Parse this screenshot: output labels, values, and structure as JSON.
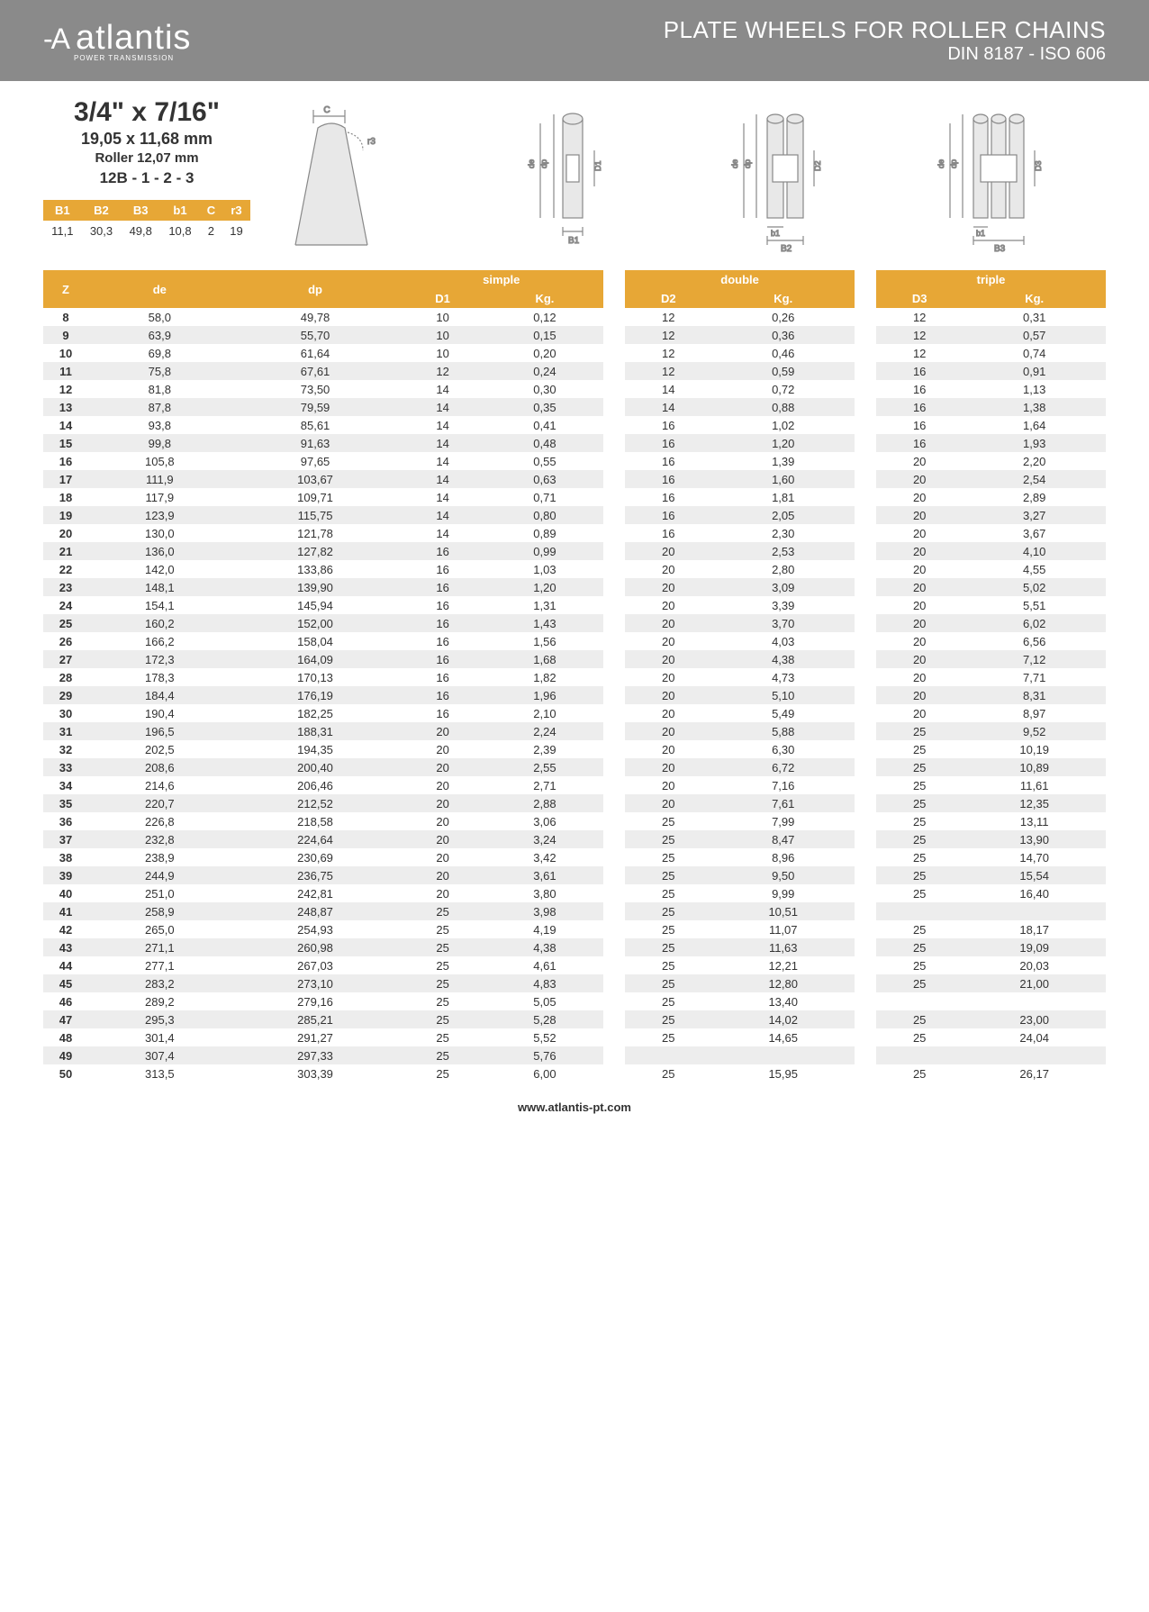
{
  "brand": {
    "text": "atlantis",
    "sub": "POWER TRANSMISSION"
  },
  "header": {
    "line1": "PLATE WHEELS FOR ROLLER CHAINS",
    "line2": "DIN 8187 - ISO 606"
  },
  "spec": {
    "title": "3/4\" x 7/16\"",
    "mm": "19,05 x 11,68 mm",
    "roller": "Roller 12,07 mm",
    "code": "12B - 1 - 2 - 3"
  },
  "mini_headers": [
    "B1",
    "B2",
    "B3",
    "b1",
    "C",
    "r3"
  ],
  "mini_values": [
    "11,1",
    "30,3",
    "49,8",
    "10,8",
    "2",
    "19"
  ],
  "table": {
    "groups": [
      "simple",
      "double",
      "triple"
    ],
    "sub": {
      "z": "Z",
      "de": "de",
      "dp": "dp",
      "d": "D",
      "kg": "Kg."
    },
    "d_labels": [
      "D1",
      "D2",
      "D3"
    ],
    "rows": [
      {
        "z": "8",
        "de": "58,0",
        "dp": "49,78",
        "d1": "10",
        "k1": "0,12",
        "d2": "12",
        "k2": "0,26",
        "d3": "12",
        "k3": "0,31"
      },
      {
        "z": "9",
        "de": "63,9",
        "dp": "55,70",
        "d1": "10",
        "k1": "0,15",
        "d2": "12",
        "k2": "0,36",
        "d3": "12",
        "k3": "0,57"
      },
      {
        "z": "10",
        "de": "69,8",
        "dp": "61,64",
        "d1": "10",
        "k1": "0,20",
        "d2": "12",
        "k2": "0,46",
        "d3": "12",
        "k3": "0,74"
      },
      {
        "z": "11",
        "de": "75,8",
        "dp": "67,61",
        "d1": "12",
        "k1": "0,24",
        "d2": "12",
        "k2": "0,59",
        "d3": "16",
        "k3": "0,91"
      },
      {
        "z": "12",
        "de": "81,8",
        "dp": "73,50",
        "d1": "14",
        "k1": "0,30",
        "d2": "14",
        "k2": "0,72",
        "d3": "16",
        "k3": "1,13"
      },
      {
        "z": "13",
        "de": "87,8",
        "dp": "79,59",
        "d1": "14",
        "k1": "0,35",
        "d2": "14",
        "k2": "0,88",
        "d3": "16",
        "k3": "1,38"
      },
      {
        "z": "14",
        "de": "93,8",
        "dp": "85,61",
        "d1": "14",
        "k1": "0,41",
        "d2": "16",
        "k2": "1,02",
        "d3": "16",
        "k3": "1,64"
      },
      {
        "z": "15",
        "de": "99,8",
        "dp": "91,63",
        "d1": "14",
        "k1": "0,48",
        "d2": "16",
        "k2": "1,20",
        "d3": "16",
        "k3": "1,93"
      },
      {
        "z": "16",
        "de": "105,8",
        "dp": "97,65",
        "d1": "14",
        "k1": "0,55",
        "d2": "16",
        "k2": "1,39",
        "d3": "20",
        "k3": "2,20"
      },
      {
        "z": "17",
        "de": "111,9",
        "dp": "103,67",
        "d1": "14",
        "k1": "0,63",
        "d2": "16",
        "k2": "1,60",
        "d3": "20",
        "k3": "2,54"
      },
      {
        "z": "18",
        "de": "117,9",
        "dp": "109,71",
        "d1": "14",
        "k1": "0,71",
        "d2": "16",
        "k2": "1,81",
        "d3": "20",
        "k3": "2,89"
      },
      {
        "z": "19",
        "de": "123,9",
        "dp": "115,75",
        "d1": "14",
        "k1": "0,80",
        "d2": "16",
        "k2": "2,05",
        "d3": "20",
        "k3": "3,27"
      },
      {
        "z": "20",
        "de": "130,0",
        "dp": "121,78",
        "d1": "14",
        "k1": "0,89",
        "d2": "16",
        "k2": "2,30",
        "d3": "20",
        "k3": "3,67"
      },
      {
        "z": "21",
        "de": "136,0",
        "dp": "127,82",
        "d1": "16",
        "k1": "0,99",
        "d2": "20",
        "k2": "2,53",
        "d3": "20",
        "k3": "4,10"
      },
      {
        "z": "22",
        "de": "142,0",
        "dp": "133,86",
        "d1": "16",
        "k1": "1,03",
        "d2": "20",
        "k2": "2,80",
        "d3": "20",
        "k3": "4,55"
      },
      {
        "z": "23",
        "de": "148,1",
        "dp": "139,90",
        "d1": "16",
        "k1": "1,20",
        "d2": "20",
        "k2": "3,09",
        "d3": "20",
        "k3": "5,02"
      },
      {
        "z": "24",
        "de": "154,1",
        "dp": "145,94",
        "d1": "16",
        "k1": "1,31",
        "d2": "20",
        "k2": "3,39",
        "d3": "20",
        "k3": "5,51"
      },
      {
        "z": "25",
        "de": "160,2",
        "dp": "152,00",
        "d1": "16",
        "k1": "1,43",
        "d2": "20",
        "k2": "3,70",
        "d3": "20",
        "k3": "6,02"
      },
      {
        "z": "26",
        "de": "166,2",
        "dp": "158,04",
        "d1": "16",
        "k1": "1,56",
        "d2": "20",
        "k2": "4,03",
        "d3": "20",
        "k3": "6,56"
      },
      {
        "z": "27",
        "de": "172,3",
        "dp": "164,09",
        "d1": "16",
        "k1": "1,68",
        "d2": "20",
        "k2": "4,38",
        "d3": "20",
        "k3": "7,12"
      },
      {
        "z": "28",
        "de": "178,3",
        "dp": "170,13",
        "d1": "16",
        "k1": "1,82",
        "d2": "20",
        "k2": "4,73",
        "d3": "20",
        "k3": "7,71"
      },
      {
        "z": "29",
        "de": "184,4",
        "dp": "176,19",
        "d1": "16",
        "k1": "1,96",
        "d2": "20",
        "k2": "5,10",
        "d3": "20",
        "k3": "8,31"
      },
      {
        "z": "30",
        "de": "190,4",
        "dp": "182,25",
        "d1": "16",
        "k1": "2,10",
        "d2": "20",
        "k2": "5,49",
        "d3": "20",
        "k3": "8,97"
      },
      {
        "z": "31",
        "de": "196,5",
        "dp": "188,31",
        "d1": "20",
        "k1": "2,24",
        "d2": "20",
        "k2": "5,88",
        "d3": "25",
        "k3": "9,52"
      },
      {
        "z": "32",
        "de": "202,5",
        "dp": "194,35",
        "d1": "20",
        "k1": "2,39",
        "d2": "20",
        "k2": "6,30",
        "d3": "25",
        "k3": "10,19"
      },
      {
        "z": "33",
        "de": "208,6",
        "dp": "200,40",
        "d1": "20",
        "k1": "2,55",
        "d2": "20",
        "k2": "6,72",
        "d3": "25",
        "k3": "10,89"
      },
      {
        "z": "34",
        "de": "214,6",
        "dp": "206,46",
        "d1": "20",
        "k1": "2,71",
        "d2": "20",
        "k2": "7,16",
        "d3": "25",
        "k3": "11,61"
      },
      {
        "z": "35",
        "de": "220,7",
        "dp": "212,52",
        "d1": "20",
        "k1": "2,88",
        "d2": "20",
        "k2": "7,61",
        "d3": "25",
        "k3": "12,35"
      },
      {
        "z": "36",
        "de": "226,8",
        "dp": "218,58",
        "d1": "20",
        "k1": "3,06",
        "d2": "25",
        "k2": "7,99",
        "d3": "25",
        "k3": "13,11"
      },
      {
        "z": "37",
        "de": "232,8",
        "dp": "224,64",
        "d1": "20",
        "k1": "3,24",
        "d2": "25",
        "k2": "8,47",
        "d3": "25",
        "k3": "13,90"
      },
      {
        "z": "38",
        "de": "238,9",
        "dp": "230,69",
        "d1": "20",
        "k1": "3,42",
        "d2": "25",
        "k2": "8,96",
        "d3": "25",
        "k3": "14,70"
      },
      {
        "z": "39",
        "de": "244,9",
        "dp": "236,75",
        "d1": "20",
        "k1": "3,61",
        "d2": "25",
        "k2": "9,50",
        "d3": "25",
        "k3": "15,54"
      },
      {
        "z": "40",
        "de": "251,0",
        "dp": "242,81",
        "d1": "20",
        "k1": "3,80",
        "d2": "25",
        "k2": "9,99",
        "d3": "25",
        "k3": "16,40"
      },
      {
        "z": "41",
        "de": "258,9",
        "dp": "248,87",
        "d1": "25",
        "k1": "3,98",
        "d2": "25",
        "k2": "10,51",
        "d3": "",
        "k3": ""
      },
      {
        "z": "42",
        "de": "265,0",
        "dp": "254,93",
        "d1": "25",
        "k1": "4,19",
        "d2": "25",
        "k2": "11,07",
        "d3": "25",
        "k3": "18,17"
      },
      {
        "z": "43",
        "de": "271,1",
        "dp": "260,98",
        "d1": "25",
        "k1": "4,38",
        "d2": "25",
        "k2": "11,63",
        "d3": "25",
        "k3": "19,09"
      },
      {
        "z": "44",
        "de": "277,1",
        "dp": "267,03",
        "d1": "25",
        "k1": "4,61",
        "d2": "25",
        "k2": "12,21",
        "d3": "25",
        "k3": "20,03"
      },
      {
        "z": "45",
        "de": "283,2",
        "dp": "273,10",
        "d1": "25",
        "k1": "4,83",
        "d2": "25",
        "k2": "12,80",
        "d3": "25",
        "k3": "21,00"
      },
      {
        "z": "46",
        "de": "289,2",
        "dp": "279,16",
        "d1": "25",
        "k1": "5,05",
        "d2": "25",
        "k2": "13,40",
        "d3": "",
        "k3": ""
      },
      {
        "z": "47",
        "de": "295,3",
        "dp": "285,21",
        "d1": "25",
        "k1": "5,28",
        "d2": "25",
        "k2": "14,02",
        "d3": "25",
        "k3": "23,00"
      },
      {
        "z": "48",
        "de": "301,4",
        "dp": "291,27",
        "d1": "25",
        "k1": "5,52",
        "d2": "25",
        "k2": "14,65",
        "d3": "25",
        "k3": "24,04"
      },
      {
        "z": "49",
        "de": "307,4",
        "dp": "297,33",
        "d1": "25",
        "k1": "5,76",
        "d2": "",
        "k2": "",
        "d3": "",
        "k3": ""
      },
      {
        "z": "50",
        "de": "313,5",
        "dp": "303,39",
        "d1": "25",
        "k1": "6,00",
        "d2": "25",
        "k2": "15,95",
        "d3": "25",
        "k3": "26,17"
      }
    ]
  },
  "footer": "www.atlantis-pt.com",
  "colors": {
    "header_bg": "#8a8a8a",
    "accent": "#e7a736",
    "row_alt": "#ededed"
  }
}
